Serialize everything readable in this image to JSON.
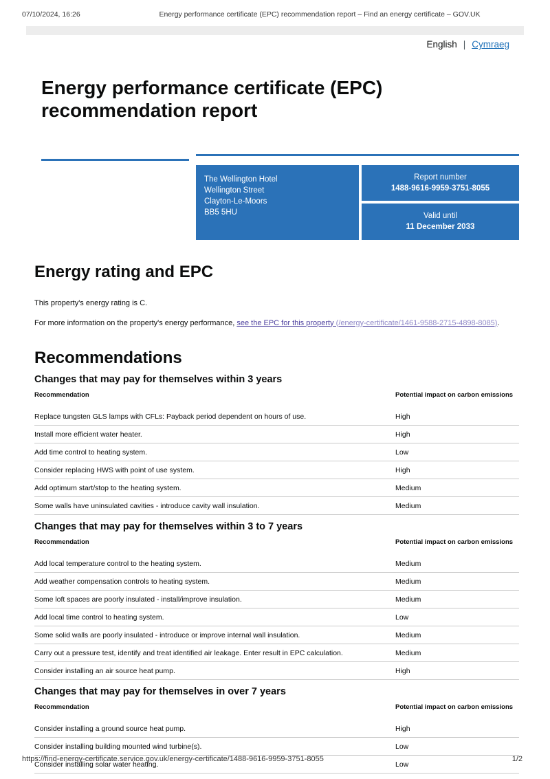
{
  "print_header": {
    "timestamp": "07/10/2024, 16:26",
    "page_title": "Energy performance certificate (EPC) recommendation report – Find an energy certificate – GOV.UK"
  },
  "language_switcher": {
    "current": "English",
    "separator": "|",
    "alternate": "Cymraeg"
  },
  "title": "Energy performance certificate (EPC) recommendation report",
  "summary": {
    "address_lines": [
      "The Wellington Hotel",
      "Wellington Street",
      "Clayton-Le-Moors",
      "BB5 5HU"
    ],
    "report_number_label": "Report number",
    "report_number": "1488-9616-9959-3751-8055",
    "valid_until_label": "Valid until",
    "valid_until": "11 December 2033"
  },
  "energy_rating": {
    "heading": "Energy rating and EPC",
    "rating_text": "This property's energy rating is C.",
    "info_text": "For more information on the property's energy performance, ",
    "link_text": "see the EPC for this property",
    "link_href_text": " (/energy-certificate/1461-9588-2715-4898-8085)",
    "link_suffix": "."
  },
  "recommendations": {
    "heading": "Recommendations",
    "col_recommendation": "Recommendation",
    "col_impact": "Potential impact on carbon emissions",
    "groups": [
      {
        "heading": "Changes that may pay for themselves within 3 years",
        "rows": [
          {
            "recommendation": "Replace tungsten GLS lamps with CFLs: Payback period dependent on hours of use.",
            "impact": "High"
          },
          {
            "recommendation": "Install more efficient water heater.",
            "impact": "High"
          },
          {
            "recommendation": "Add time control to heating system.",
            "impact": "Low"
          },
          {
            "recommendation": "Consider replacing HWS with point of use system.",
            "impact": "High"
          },
          {
            "recommendation": "Add optimum start/stop to the heating system.",
            "impact": "Medium"
          },
          {
            "recommendation": "Some walls have uninsulated cavities - introduce cavity wall insulation.",
            "impact": "Medium"
          }
        ]
      },
      {
        "heading": "Changes that may pay for themselves within 3 to 7 years",
        "rows": [
          {
            "recommendation": "Add local temperature control to the heating system.",
            "impact": "Medium"
          },
          {
            "recommendation": "Add weather compensation controls to heating system.",
            "impact": "Medium"
          },
          {
            "recommendation": "Some loft spaces are poorly insulated - install/improve insulation.",
            "impact": "Medium"
          },
          {
            "recommendation": "Add local time control to heating system.",
            "impact": "Low"
          },
          {
            "recommendation": "Some solid walls are poorly insulated - introduce or improve internal wall insulation.",
            "impact": "Medium"
          },
          {
            "recommendation": "Carry out a pressure test, identify and treat identified air leakage. Enter result in EPC calculation.",
            "impact": "Medium"
          },
          {
            "recommendation": "Consider installing an air source heat pump.",
            "impact": "High"
          }
        ]
      },
      {
        "heading": "Changes that may pay for themselves in over 7 years",
        "rows": [
          {
            "recommendation": "Consider installing a ground source heat pump.",
            "impact": "High"
          },
          {
            "recommendation": "Consider installing building mounted wind turbine(s).",
            "impact": "Low"
          },
          {
            "recommendation": "Consider installing solar water heating.",
            "impact": "Low"
          }
        ]
      }
    ]
  },
  "footer": {
    "url": "https://find-energy-certificate.service.gov.uk/energy-certificate/1488-9616-9959-3751-8055",
    "page_indicator": "1/2"
  },
  "colors": {
    "accent_blue": "#2b72b8",
    "link_blue": "#1d70b8",
    "bar_gray": "#ededed",
    "table_line": "#c9c9c9",
    "text": "#0b0c0c"
  }
}
